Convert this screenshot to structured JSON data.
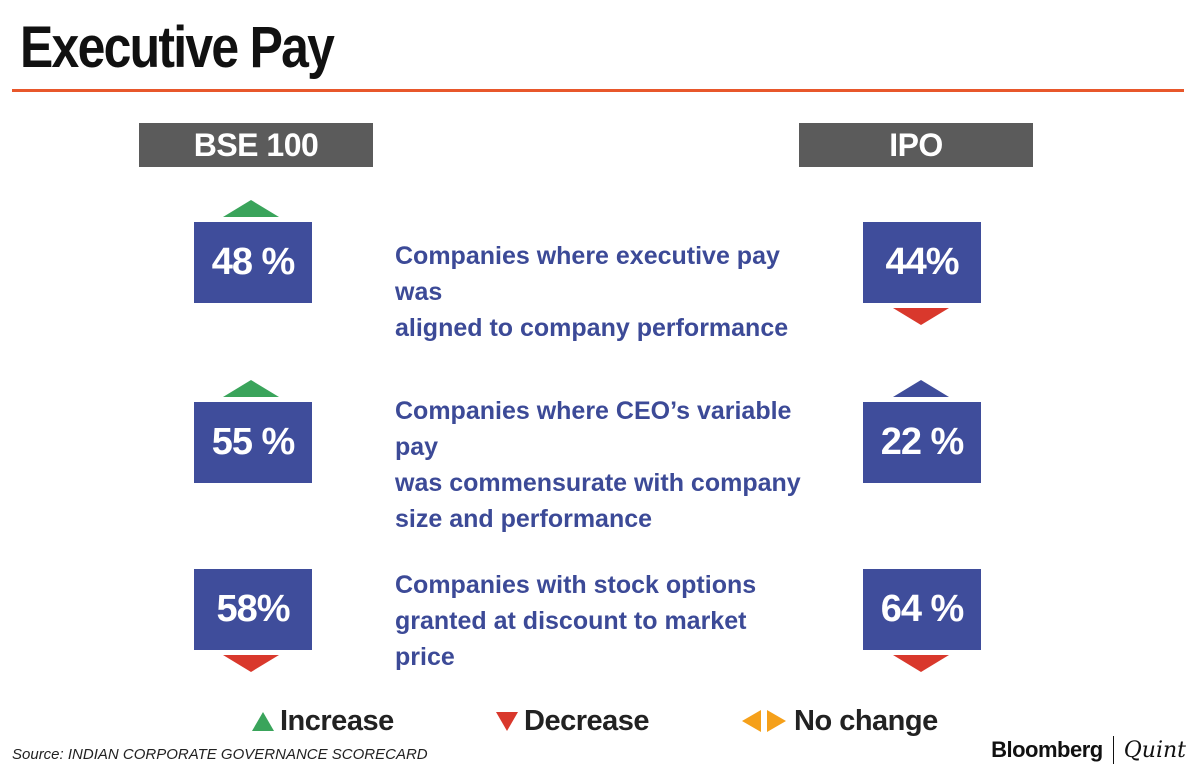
{
  "title": "Executive Pay",
  "colors": {
    "accent_rule": "#e8572b",
    "header_bg": "#5b5b5b",
    "box_fill": "#3f4d9b",
    "text_blue": "#3c4a97",
    "increase": "#3aa45b",
    "decrease": "#d9382c",
    "no_change": "#f5a01a",
    "neutral_marker": "#3f4d9b"
  },
  "chart_data": {
    "type": "table",
    "title": "Executive Pay",
    "columns": [
      "BSE 100",
      "IPO"
    ],
    "rows": [
      {
        "metric": "Companies where executive pay was aligned to company performance",
        "bse100": {
          "value": "48 %",
          "trend": "increase"
        },
        "ipo": {
          "value": "44%",
          "trend": "decrease"
        }
      },
      {
        "metric": "Companies where CEO’s variable pay was commensurate with company size and performance",
        "bse100": {
          "value": "55 %",
          "trend": "increase"
        },
        "ipo": {
          "value": "22 %",
          "trend": "up-neutral"
        }
      },
      {
        "metric": "Companies with stock options granted at discount to market price",
        "bse100": {
          "value": "58%",
          "trend": "decrease"
        },
        "ipo": {
          "value": "64 %",
          "trend": "decrease"
        }
      }
    ],
    "legend": {
      "increase": "Increase",
      "decrease": "Decrease",
      "no_change": "No change"
    }
  },
  "rows_text": [
    [
      "Companies where executive pay was",
      "aligned to company performance"
    ],
    [
      "Companies where CEO’s variable pay",
      "was commensurate with company",
      "size and performance"
    ],
    [
      "Companies with stock options",
      "granted at discount to market",
      "price"
    ]
  ],
  "source": "Source: INDIAN CORPORATE GOVERNANCE SCORECARD",
  "brand": {
    "name1": "Bloomberg",
    "name2": "Quint"
  }
}
